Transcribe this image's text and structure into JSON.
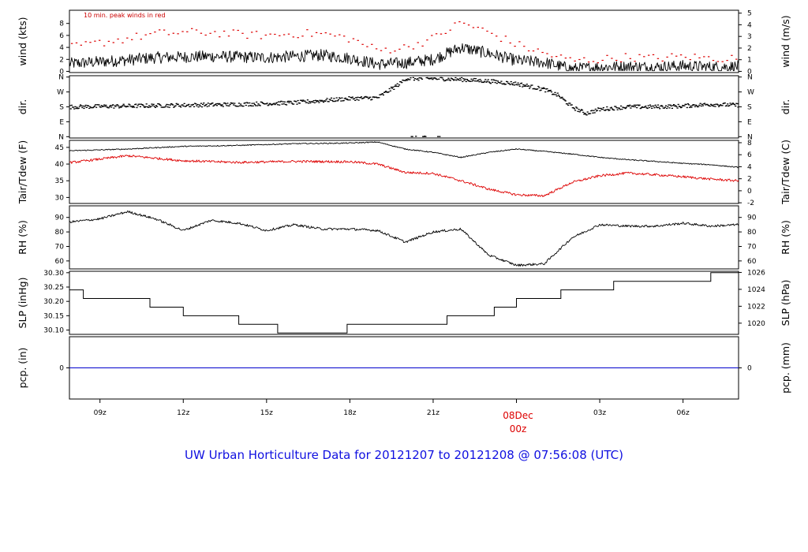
{
  "chart_data": {
    "title": "UW Urban Horticulture Data for 20121207  to  20121208 @ 07:56:08  (UTC)",
    "x_axis": {
      "unit": "hours UTC since 2012-12-07 00z",
      "range": [
        7.9,
        32.0
      ],
      "ticks": [
        {
          "x": 9,
          "label": "09z"
        },
        {
          "x": 12,
          "label": "12z"
        },
        {
          "x": 15,
          "label": "15z"
        },
        {
          "x": 18,
          "label": "18z"
        },
        {
          "x": 21,
          "label": "21z"
        },
        {
          "x": 24,
          "label": "",
          "date_label": "08Dec",
          "hour_label": "00z"
        },
        {
          "x": 27,
          "label": "03z"
        },
        {
          "x": 30,
          "label": "06z"
        }
      ]
    },
    "panels": [
      {
        "id": "wind",
        "type": "line",
        "left_label": "wind (kts)",
        "right_label": "wind (m/s)",
        "annotation": "10 min. peak winds in red",
        "ylim": [
          -0.2,
          10.2
        ],
        "left_ticks": [
          {
            "v": 0,
            "label": "0"
          },
          {
            "v": 2,
            "label": "2"
          },
          {
            "v": 4,
            "label": "4"
          },
          {
            "v": 6,
            "label": "6"
          },
          {
            "v": 8,
            "label": "8"
          }
        ],
        "right_ticks": [
          {
            "v": 0,
            "label": "0"
          },
          {
            "v": 1.944,
            "label": "1"
          },
          {
            "v": 3.888,
            "label": "2"
          },
          {
            "v": 5.832,
            "label": "3"
          },
          {
            "v": 7.776,
            "label": "4"
          },
          {
            "v": 9.72,
            "label": "5"
          }
        ],
        "series": [
          {
            "key": "speed",
            "color": "#000000",
            "x": [
              8,
              9,
              10,
              11,
              12,
              13,
              14,
              15,
              16,
              17,
              18,
              19,
              20,
              21,
              22,
              23,
              24,
              25,
              26,
              27,
              28,
              29,
              30,
              31,
              32
            ],
            "y": [
              1.3,
              1.6,
              1.9,
              2.3,
              2.4,
              2.5,
              2.4,
              2.3,
              2.5,
              2.7,
              2.2,
              1.2,
              1.4,
              2.0,
              4.0,
              3.0,
              1.8,
              1.5,
              0.4,
              0.7,
              0.8,
              0.7,
              0.9,
              0.7,
              0.8
            ],
            "noise": 1.0
          },
          {
            "key": "peak",
            "color": "#dd0000",
            "style": "dots",
            "x": [
              8,
              9,
              10,
              11,
              12,
              13,
              14,
              15,
              16,
              17,
              18,
              19,
              20,
              21,
              22,
              23,
              24,
              25,
              26,
              27,
              28,
              29,
              30,
              31,
              32
            ],
            "y": [
              4.0,
              4.8,
              5.5,
              6.3,
              6.5,
              6.5,
              6.2,
              6.0,
              6.3,
              6.3,
              5.5,
              3.5,
              4.0,
              5.5,
              8.2,
              6.5,
              4.5,
              3.0,
              1.8,
              2.0,
              2.4,
              2.2,
              2.5,
              2.2,
              2.2
            ],
            "noise": 0.7
          }
        ]
      },
      {
        "id": "dir",
        "type": "scatter",
        "left_label": "dir.",
        "right_label": "dir.",
        "ylim": [
          -8,
          368
        ],
        "left_ticks": [
          {
            "v": 0,
            "label": "N"
          },
          {
            "v": 90,
            "label": "E"
          },
          {
            "v": 180,
            "label": "S"
          },
          {
            "v": 270,
            "label": "W"
          },
          {
            "v": 360,
            "label": "N"
          }
        ],
        "right_ticks": [
          {
            "v": 0,
            "label": "N"
          },
          {
            "v": 90,
            "label": "E"
          },
          {
            "v": 180,
            "label": "S"
          },
          {
            "v": 270,
            "label": "W"
          },
          {
            "v": 360,
            "label": "N"
          }
        ],
        "series": [
          {
            "key": "direction",
            "color": "#000000",
            "x": [
              8,
              10,
              12,
              14,
              16,
              18,
              19,
              19.8,
              20,
              21,
              22,
              23,
              24,
              25,
              25.5,
              26,
              26.5,
              27,
              28,
              29,
              30,
              31,
              32
            ],
            "y": [
              180,
              185,
              190,
              195,
              205,
              230,
              235,
              320,
              350,
              352,
              345,
              335,
              320,
              285,
              250,
              180,
              140,
              165,
              180,
              180,
              185,
              195,
              190
            ],
            "noise": 12
          }
        ]
      },
      {
        "id": "temp",
        "type": "line",
        "left_label": "Tair/Tdew (F)",
        "right_label": "Tair/Tdew (C)",
        "ylim": [
          28.2,
          47.1
        ],
        "left_ticks": [
          {
            "v": 30,
            "label": "30"
          },
          {
            "v": 35,
            "label": "35"
          },
          {
            "v": 40,
            "label": "40"
          },
          {
            "v": 45,
            "label": "45"
          }
        ],
        "right_ticks": [
          {
            "v": 28.4,
            "label": "-2"
          },
          {
            "v": 32.0,
            "label": "0"
          },
          {
            "v": 35.6,
            "label": "2"
          },
          {
            "v": 39.2,
            "label": "4"
          },
          {
            "v": 42.8,
            "label": "6"
          },
          {
            "v": 46.4,
            "label": "8"
          }
        ],
        "series": [
          {
            "key": "air_temperature",
            "color": "#000000",
            "x": [
              8,
              10,
              12,
              14,
              16,
              18,
              19,
              20,
              21,
              22,
              23,
              24,
              25,
              26,
              27,
              28,
              29,
              30,
              31,
              32
            ],
            "y": [
              44.0,
              44.5,
              45.3,
              45.6,
              46.1,
              46.3,
              46.6,
              44.5,
              43.5,
              42.0,
              43.5,
              44.5,
              43.8,
              43.0,
              42.0,
              41.3,
              40.8,
              40.2,
              39.8,
              39.0
            ],
            "noise": 0.15
          },
          {
            "key": "dewpoint",
            "color": "#dd0000",
            "x": [
              8,
              10,
              12,
              14,
              16,
              18,
              19,
              20,
              21,
              22,
              23,
              24,
              25,
              26,
              27,
              28,
              29,
              30,
              31,
              32
            ],
            "y": [
              40.5,
              42.5,
              41.0,
              40.5,
              40.8,
              40.7,
              40.0,
              37.5,
              37.2,
              35.0,
              32.5,
              30.8,
              30.5,
              34.5,
              36.5,
              37.3,
              36.8,
              36.2,
              35.5,
              35.0
            ],
            "noise": 0.35
          }
        ]
      },
      {
        "id": "rh",
        "type": "line",
        "left_label": "RH (%)",
        "right_label": "RH (%)",
        "ylim": [
          54.5,
          98
        ],
        "left_ticks": [
          {
            "v": 60,
            "label": "60"
          },
          {
            "v": 70,
            "label": "70"
          },
          {
            "v": 80,
            "label": "80"
          },
          {
            "v": 90,
            "label": "90"
          }
        ],
        "right_ticks": [
          {
            "v": 60,
            "label": "60"
          },
          {
            "v": 70,
            "label": "70"
          },
          {
            "v": 80,
            "label": "80"
          },
          {
            "v": 90,
            "label": "90"
          }
        ],
        "series": [
          {
            "key": "relative_humidity",
            "color": "#000000",
            "x": [
              8,
              9,
              10,
              11,
              12,
              13,
              14,
              15,
              16,
              17,
              18,
              19,
              20,
              21,
              22,
              23,
              24,
              25,
              26,
              27,
              28,
              29,
              30,
              31,
              32
            ],
            "y": [
              87,
              89,
              94,
              89,
              81,
              88,
              86,
              81,
              85,
              82,
              82,
              81,
              73,
              80,
              82,
              64,
              57,
              58,
              76,
              85,
              84,
              84,
              86,
              84,
              85
            ],
            "noise": 0.8
          }
        ]
      },
      {
        "id": "slp",
        "type": "step",
        "left_label": "SLP (inHg)",
        "right_label": "SLP (hPa)",
        "ylim": [
          30.085,
          30.305
        ],
        "left_ticks": [
          {
            "v": 30.1,
            "label": "30.10"
          },
          {
            "v": 30.15,
            "label": "30.15"
          },
          {
            "v": 30.2,
            "label": "30.20"
          },
          {
            "v": 30.25,
            "label": "30.25"
          },
          {
            "v": 30.3,
            "label": "30.30"
          }
        ],
        "right_ticks": [
          {
            "v": 30.124,
            "label": "1020"
          },
          {
            "v": 30.183,
            "label": "1022"
          },
          {
            "v": 30.242,
            "label": "1024"
          },
          {
            "v": 30.301,
            "label": "1026"
          }
        ],
        "series": [
          {
            "key": "sea_level_pressure",
            "color": "#000000",
            "x": [
              7.9,
              8.4,
              10.8,
              12.0,
              14.0,
              15.4,
              17.9,
              21.5,
              23.2,
              24.0,
              25.6,
              27.5,
              31.0,
              32.0
            ],
            "y": [
              30.24,
              30.21,
              30.18,
              30.15,
              30.12,
              30.09,
              30.12,
              30.15,
              30.18,
              30.21,
              30.24,
              30.27,
              30.3,
              30.3
            ]
          }
        ]
      },
      {
        "id": "pcp",
        "type": "line",
        "left_label": "pcp. (in)",
        "right_label": "pcp. (mm)",
        "ylim": [
          -0.5,
          0.5
        ],
        "left_ticks": [
          {
            "v": 0,
            "label": "0"
          }
        ],
        "right_ticks": [
          {
            "v": 0,
            "label": "0"
          }
        ],
        "series": [
          {
            "key": "precipitation",
            "color": "#0000cc",
            "x": [
              7.9,
              32.0
            ],
            "y": [
              0,
              0
            ]
          }
        ]
      }
    ]
  }
}
